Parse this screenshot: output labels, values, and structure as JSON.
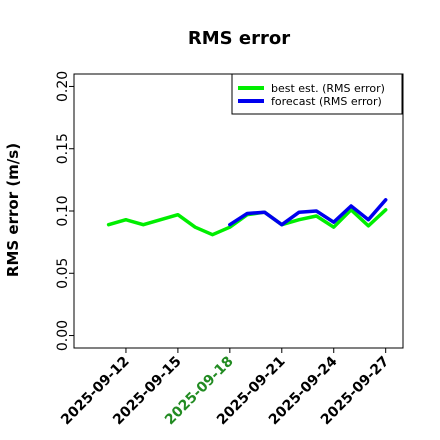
{
  "chart_data": {
    "type": "line",
    "title": "RMS error",
    "ylabel": "RMS error (m/s)",
    "xlabel": "",
    "ylim": [
      -0.01,
      0.21
    ],
    "yticks": [
      "0.00",
      "0.05",
      "0.10",
      "0.15",
      "0.20"
    ],
    "ytick_values": [
      0.0,
      0.05,
      0.1,
      0.15,
      0.2
    ],
    "xlim": [
      "2025-09-09",
      "2025-09-28"
    ],
    "xticks": [
      "2025-09-12",
      "2025-09-15",
      "2025-09-18",
      "2025-09-21",
      "2025-09-24",
      "2025-09-27"
    ],
    "highlight_xtick": "2025-09-18",
    "highlight_color": "#228b22",
    "grid": false,
    "legend_position": "top-right",
    "series": [
      {
        "name": "best est. (RMS error)",
        "color": "#00ee00",
        "x": [
          "2025-09-11",
          "2025-09-12",
          "2025-09-13",
          "2025-09-14",
          "2025-09-15",
          "2025-09-16",
          "2025-09-17",
          "2025-09-18",
          "2025-09-19",
          "2025-09-20",
          "2025-09-21",
          "2025-09-22",
          "2025-09-23",
          "2025-09-24",
          "2025-09-25",
          "2025-09-26",
          "2025-09-27"
        ],
        "y": [
          0.089,
          0.093,
          0.089,
          0.093,
          0.097,
          0.087,
          0.081,
          0.087,
          0.097,
          0.099,
          0.089,
          0.093,
          0.096,
          0.087,
          0.101,
          0.088,
          0.101
        ]
      },
      {
        "name": "forecast (RMS error)",
        "color": "#0000ee",
        "x": [
          "2025-09-18",
          "2025-09-19",
          "2025-09-20",
          "2025-09-21",
          "2025-09-22",
          "2025-09-23",
          "2025-09-24",
          "2025-09-25",
          "2025-09-26",
          "2025-09-27"
        ],
        "y": [
          0.089,
          0.098,
          0.099,
          0.089,
          0.099,
          0.1,
          0.091,
          0.104,
          0.093,
          0.109
        ]
      }
    ]
  }
}
